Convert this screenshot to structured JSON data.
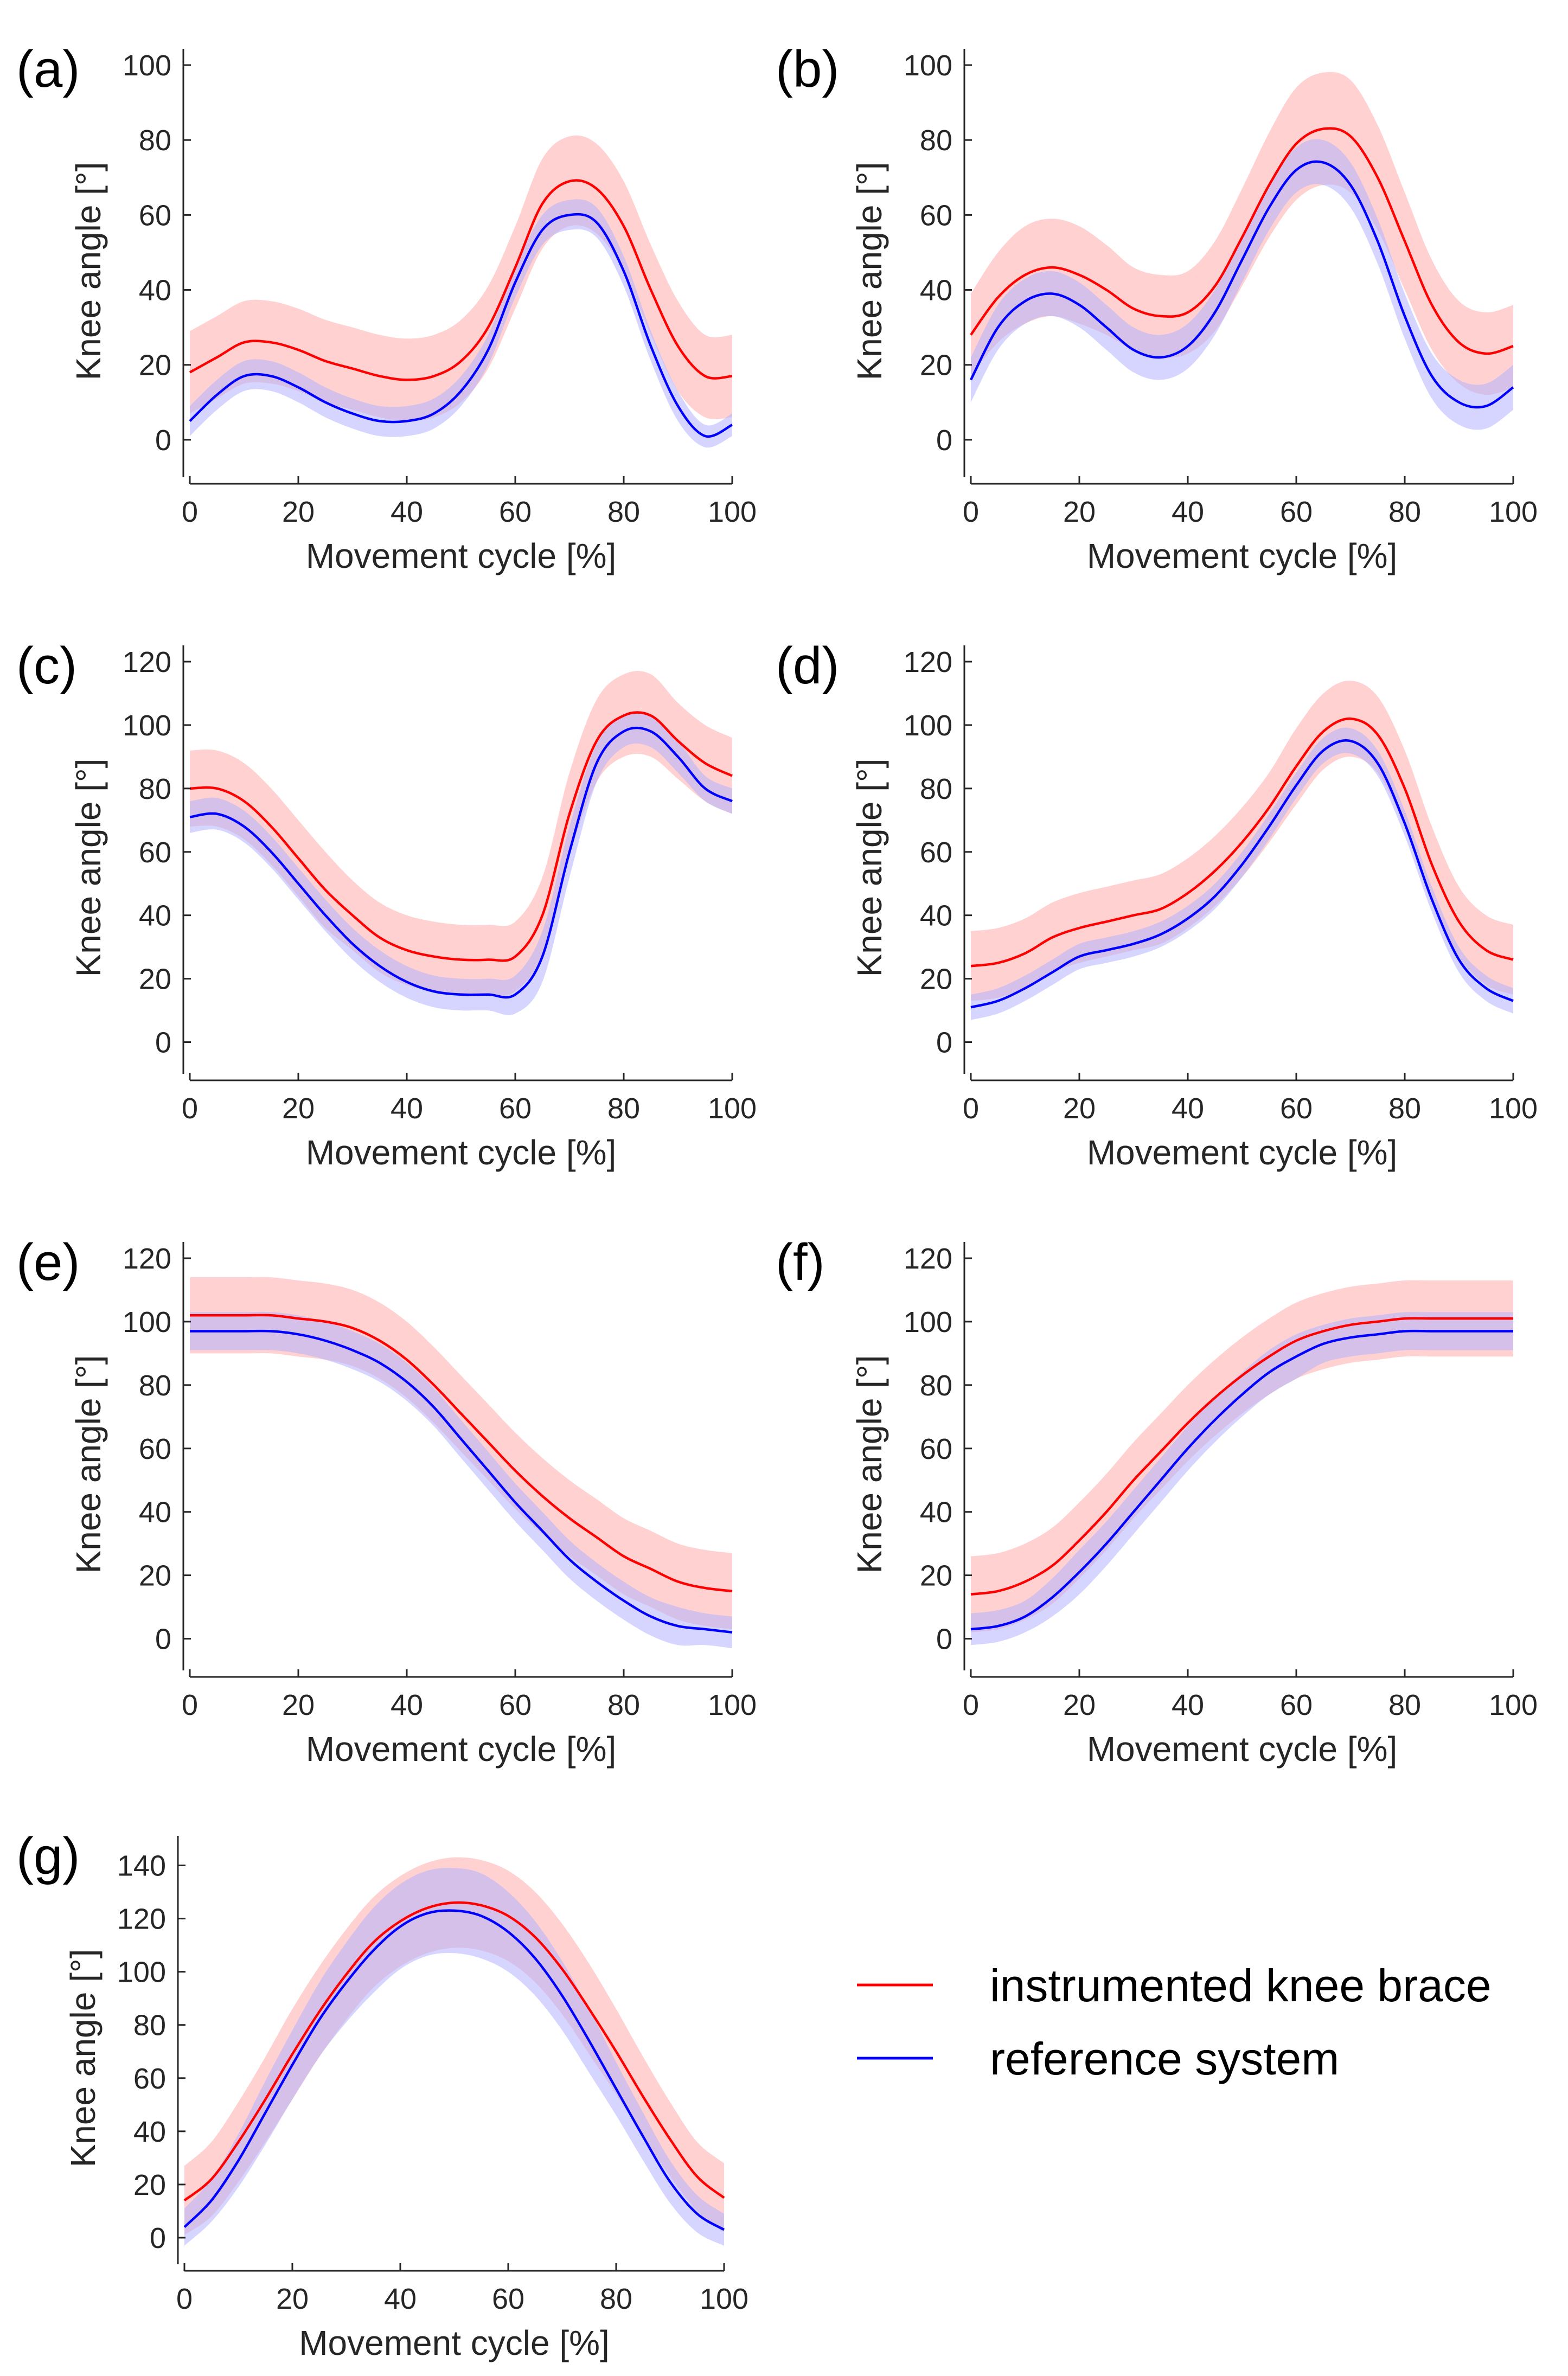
{
  "colors": {
    "instrumented": "#ff0000",
    "instrumented_band": "#ffb3b3",
    "reference": "#0000ff",
    "reference_band": "#b3b3ff",
    "axis": "#262626"
  },
  "legend": [
    {
      "label": "instrumented knee brace",
      "color": "#ff0000"
    },
    {
      "label": "reference system",
      "color": "#0000ff"
    }
  ],
  "chart_data": [
    {
      "type": "line",
      "label": "(a)",
      "xlabel": "Movement cycle [%]",
      "ylabel": "Knee angle [°]",
      "xlim": [
        0,
        100
      ],
      "ylim": [
        -10,
        100
      ],
      "xticks": [
        0,
        20,
        40,
        60,
        80,
        100
      ],
      "yticks": [
        0,
        20,
        40,
        60,
        80,
        100
      ],
      "x": [
        0,
        5,
        10,
        15,
        20,
        25,
        30,
        35,
        40,
        45,
        50,
        55,
        60,
        65,
        70,
        75,
        80,
        85,
        90,
        95,
        100
      ],
      "series": [
        {
          "name": "instrumented knee brace",
          "values": [
            18,
            22,
            26,
            26,
            24,
            21,
            19,
            17,
            16,
            17,
            21,
            30,
            46,
            63,
            69,
            67,
            57,
            40,
            25,
            17,
            17
          ],
          "sd": [
            11,
            11,
            11,
            11,
            11,
            11,
            11,
            11,
            11,
            11,
            11,
            11,
            11,
            12,
            12,
            12,
            12,
            12,
            12,
            11,
            11
          ]
        },
        {
          "name": "reference system",
          "values": [
            5,
            12,
            17,
            17,
            14,
            10,
            7,
            5,
            5,
            7,
            13,
            24,
            42,
            56,
            60,
            58,
            45,
            25,
            9,
            1,
            4
          ],
          "sd": [
            4,
            4,
            4,
            4,
            4,
            4,
            4,
            4,
            4,
            4,
            4,
            4,
            4,
            4,
            4,
            4,
            4,
            4,
            4,
            3,
            3
          ]
        }
      ]
    },
    {
      "type": "line",
      "label": "(b)",
      "xlabel": "Movement cycle [%]",
      "ylabel": "Knee angle [°]",
      "xlim": [
        0,
        100
      ],
      "ylim": [
        -10,
        100
      ],
      "xticks": [
        0,
        20,
        40,
        60,
        80,
        100
      ],
      "yticks": [
        0,
        20,
        40,
        60,
        80,
        100
      ],
      "x": [
        0,
        5,
        10,
        15,
        20,
        25,
        30,
        35,
        40,
        45,
        50,
        55,
        60,
        65,
        70,
        75,
        80,
        85,
        90,
        95,
        100
      ],
      "series": [
        {
          "name": "instrumented knee brace",
          "values": [
            28,
            38,
            44,
            46,
            44,
            40,
            35,
            33,
            34,
            41,
            54,
            68,
            79,
            83,
            81,
            70,
            53,
            36,
            26,
            23,
            25
          ],
          "sd": [
            11,
            12,
            13,
            13,
            13,
            12,
            11,
            11,
            11,
            12,
            13,
            14,
            15,
            15,
            15,
            14,
            13,
            12,
            11,
            11,
            11
          ]
        },
        {
          "name": "reference system",
          "values": [
            16,
            30,
            37,
            39,
            36,
            30,
            24,
            22,
            25,
            34,
            48,
            62,
            72,
            74,
            68,
            53,
            33,
            17,
            10,
            9,
            14
          ],
          "sd": [
            6,
            6,
            6,
            6,
            6,
            6,
            6,
            6,
            6,
            6,
            6,
            6,
            6,
            6,
            6,
            6,
            6,
            6,
            6,
            6,
            6
          ]
        }
      ]
    },
    {
      "type": "line",
      "label": "(c)",
      "xlabel": "Movement cycle [%]",
      "ylabel": "Knee angle [°]",
      "xlim": [
        0,
        100
      ],
      "ylim": [
        -10,
        120
      ],
      "xticks": [
        0,
        20,
        40,
        60,
        80,
        100
      ],
      "yticks": [
        0,
        20,
        40,
        60,
        80,
        100,
        120
      ],
      "x": [
        0,
        5,
        10,
        15,
        20,
        25,
        30,
        35,
        40,
        45,
        50,
        55,
        60,
        65,
        70,
        75,
        80,
        85,
        90,
        95,
        100
      ],
      "series": [
        {
          "name": "instrumented knee brace",
          "values": [
            80,
            80,
            76,
            68,
            58,
            48,
            40,
            33,
            29,
            27,
            26,
            26,
            27,
            40,
            72,
            95,
            103,
            103,
            95,
            88,
            84
          ],
          "sd": [
            12,
            12,
            12,
            12,
            12,
            12,
            11,
            11,
            11,
            11,
            11,
            11,
            11,
            12,
            13,
            13,
            13,
            13,
            12,
            12,
            12
          ]
        },
        {
          "name": "reference system",
          "values": [
            71,
            72,
            68,
            60,
            50,
            40,
            31,
            24,
            19,
            16,
            15,
            15,
            15,
            27,
            60,
            88,
            98,
            98,
            90,
            80,
            76
          ],
          "sd": [
            5,
            5,
            5,
            5,
            5,
            5,
            5,
            5,
            5,
            5,
            5,
            5,
            6,
            8,
            8,
            6,
            5,
            5,
            5,
            4,
            4
          ]
        }
      ]
    },
    {
      "type": "line",
      "label": "(d)",
      "xlabel": "Movement cycle [%]",
      "ylabel": "Knee angle [°]",
      "xlim": [
        0,
        100
      ],
      "ylim": [
        -10,
        120
      ],
      "xticks": [
        0,
        20,
        40,
        60,
        80,
        100
      ],
      "yticks": [
        0,
        20,
        40,
        60,
        80,
        100,
        120
      ],
      "x": [
        0,
        5,
        10,
        15,
        20,
        25,
        30,
        35,
        40,
        45,
        50,
        55,
        60,
        65,
        70,
        75,
        80,
        85,
        90,
        95,
        100
      ],
      "series": [
        {
          "name": "instrumented knee brace",
          "values": [
            24,
            25,
            28,
            33,
            36,
            38,
            40,
            42,
            47,
            54,
            63,
            74,
            87,
            98,
            102,
            97,
            80,
            56,
            38,
            29,
            26
          ],
          "sd": [
            11,
            11,
            11,
            11,
            11,
            11,
            11,
            11,
            11,
            11,
            11,
            11,
            12,
            12,
            12,
            12,
            12,
            12,
            11,
            11,
            11
          ]
        },
        {
          "name": "reference system",
          "values": [
            11,
            13,
            17,
            22,
            27,
            29,
            31,
            34,
            39,
            46,
            56,
            68,
            81,
            92,
            95,
            88,
            69,
            45,
            26,
            17,
            13
          ],
          "sd": [
            4,
            4,
            4,
            4,
            4,
            4,
            4,
            4,
            4,
            4,
            4,
            4,
            4,
            4,
            4,
            4,
            4,
            4,
            4,
            4,
            4
          ]
        }
      ]
    },
    {
      "type": "line",
      "label": "(e)",
      "xlabel": "Movement cycle [%]",
      "ylabel": "Knee angle [°]",
      "xlim": [
        0,
        100
      ],
      "ylim": [
        -10,
        120
      ],
      "xticks": [
        0,
        20,
        40,
        60,
        80,
        100
      ],
      "yticks": [
        0,
        20,
        40,
        60,
        80,
        100,
        120
      ],
      "x": [
        0,
        5,
        10,
        15,
        20,
        25,
        30,
        35,
        40,
        45,
        50,
        55,
        60,
        65,
        70,
        75,
        80,
        85,
        90,
        95,
        100
      ],
      "series": [
        {
          "name": "instrumented knee brace",
          "values": [
            102,
            102,
            102,
            102,
            101,
            100,
            98,
            94,
            88,
            80,
            71,
            62,
            53,
            45,
            38,
            32,
            26,
            22,
            18,
            16,
            15
          ],
          "sd": [
            12,
            12,
            12,
            12,
            12,
            12,
            12,
            12,
            12,
            12,
            12,
            12,
            12,
            12,
            12,
            12,
            12,
            12,
            12,
            12,
            12
          ]
        },
        {
          "name": "reference system",
          "values": [
            97,
            97,
            97,
            97,
            96,
            94,
            91,
            87,
            81,
            73,
            63,
            53,
            43,
            34,
            25,
            18,
            12,
            7,
            4,
            3,
            2
          ],
          "sd": [
            6,
            6,
            6,
            6,
            6,
            6,
            6,
            6,
            6,
            6,
            6,
            6,
            6,
            6,
            6,
            6,
            6,
            6,
            6,
            5,
            5
          ]
        }
      ]
    },
    {
      "type": "line",
      "label": "(f)",
      "xlabel": "Movement cycle [%]",
      "ylabel": "Knee angle [°]",
      "xlim": [
        0,
        100
      ],
      "ylim": [
        -10,
        120
      ],
      "xticks": [
        0,
        20,
        40,
        60,
        80,
        100
      ],
      "yticks": [
        0,
        20,
        40,
        60,
        80,
        100,
        120
      ],
      "x": [
        0,
        5,
        10,
        15,
        20,
        25,
        30,
        35,
        40,
        45,
        50,
        55,
        60,
        65,
        70,
        75,
        80,
        85,
        90,
        95,
        100
      ],
      "series": [
        {
          "name": "instrumented knee brace",
          "values": [
            14,
            15,
            18,
            23,
            31,
            40,
            50,
            59,
            68,
            76,
            83,
            89,
            94,
            97,
            99,
            100,
            101,
            101,
            101,
            101,
            101
          ],
          "sd": [
            12,
            12,
            12,
            12,
            12,
            12,
            12,
            12,
            12,
            12,
            12,
            12,
            12,
            12,
            12,
            12,
            12,
            12,
            12,
            12,
            12
          ]
        },
        {
          "name": "reference system",
          "values": [
            3,
            4,
            7,
            13,
            21,
            30,
            40,
            50,
            60,
            69,
            77,
            84,
            89,
            93,
            95,
            96,
            97,
            97,
            97,
            97,
            97
          ],
          "sd": [
            5,
            5,
            5,
            6,
            7,
            7,
            7,
            7,
            7,
            7,
            7,
            7,
            7,
            6,
            6,
            6,
            6,
            6,
            6,
            6,
            6
          ]
        }
      ]
    },
    {
      "type": "line",
      "label": "(g)",
      "xlabel": "Movement cycle [%]",
      "ylabel": "Knee angle [°]",
      "xlim": [
        0,
        100
      ],
      "ylim": [
        -10,
        145
      ],
      "xticks": [
        0,
        20,
        40,
        60,
        80,
        100
      ],
      "yticks": [
        0,
        20,
        40,
        60,
        80,
        100,
        120,
        140
      ],
      "x": [
        0,
        5,
        10,
        15,
        20,
        25,
        30,
        35,
        40,
        45,
        50,
        55,
        60,
        65,
        70,
        75,
        80,
        85,
        90,
        95,
        100
      ],
      "series": [
        {
          "name": "instrumented knee brace",
          "values": [
            14,
            22,
            36,
            52,
            69,
            85,
            99,
            111,
            119,
            124,
            126,
            125,
            121,
            113,
            101,
            86,
            70,
            53,
            37,
            23,
            15
          ],
          "sd": [
            13,
            14,
            15,
            16,
            17,
            17,
            17,
            17,
            17,
            17,
            17,
            17,
            17,
            17,
            17,
            17,
            16,
            15,
            14,
            13,
            13
          ]
        },
        {
          "name": "reference system",
          "values": [
            4,
            14,
            29,
            47,
            65,
            82,
            96,
            108,
            117,
            122,
            123,
            121,
            115,
            105,
            91,
            74,
            56,
            38,
            21,
            9,
            3
          ],
          "sd": [
            7,
            8,
            10,
            12,
            13,
            14,
            15,
            16,
            16,
            16,
            16,
            16,
            15,
            14,
            13,
            12,
            10,
            9,
            8,
            7,
            6
          ]
        }
      ]
    }
  ]
}
